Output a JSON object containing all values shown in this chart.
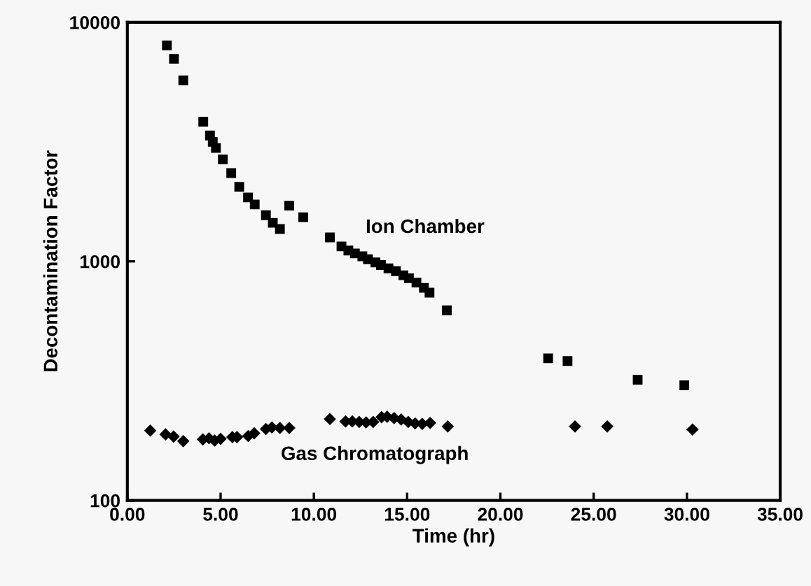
{
  "chart_data": {
    "type": "scatter",
    "xlabel": "Time (hr)",
    "ylabel": "Decontamination Factor",
    "log": "y",
    "grid": false,
    "legend": false,
    "xlim": [
      0,
      35
    ],
    "xticks": [
      {
        "value": 0,
        "label": "0.00"
      },
      {
        "value": 5,
        "label": "5.00"
      },
      {
        "value": 10,
        "label": "10.00"
      },
      {
        "value": 15,
        "label": "15.00"
      },
      {
        "value": 20,
        "label": "20.00"
      },
      {
        "value": 25,
        "label": "25.00"
      },
      {
        "value": 30,
        "label": "30.00"
      },
      {
        "value": 35,
        "label": "35.00"
      }
    ],
    "ylim": [
      100,
      10000
    ],
    "yticks": [
      100,
      1000,
      10000
    ],
    "series": [
      {
        "name": "Ion Chamber",
        "color": "#000000",
        "marker": "square",
        "x": [
          2.12,
          2.5,
          3.0,
          4.07,
          4.43,
          4.58,
          4.75,
          5.12,
          5.57,
          6.0,
          6.47,
          6.83,
          7.43,
          7.8,
          8.18,
          8.68,
          9.43,
          10.86,
          11.48,
          11.85,
          12.2,
          12.6,
          12.9,
          13.3,
          13.6,
          14.0,
          14.4,
          14.8,
          15.1,
          15.5,
          15.9,
          16.2,
          17.13,
          22.56,
          23.6,
          27.36,
          29.86
        ],
        "values": [
          8000,
          7030,
          5710,
          3840,
          3360,
          3160,
          2980,
          2670,
          2340,
          2050,
          1850,
          1730,
          1560,
          1450,
          1365,
          1710,
          1530,
          1260,
          1155,
          1110,
          1080,
          1050,
          1020,
          990,
          965,
          935,
          910,
          875,
          850,
          815,
          775,
          740,
          624,
          393,
          383,
          320,
          303
        ]
      },
      {
        "name": "Gas Chromatograph",
        "color": "#000000",
        "marker": "diamond",
        "x": [
          1.23,
          2.05,
          2.48,
          3.0,
          4.05,
          4.38,
          4.68,
          5.0,
          5.63,
          5.88,
          6.48,
          6.8,
          7.43,
          7.75,
          8.18,
          8.68,
          10.86,
          11.7,
          12.06,
          12.43,
          12.8,
          13.18,
          13.63,
          13.93,
          14.3,
          14.68,
          15.06,
          15.43,
          15.81,
          16.23,
          17.18,
          24.0,
          25.73,
          30.3
        ],
        "values": [
          196,
          189,
          185,
          177,
          180,
          182,
          178,
          181,
          184,
          184,
          186,
          191,
          199,
          202,
          201,
          201,
          219,
          214,
          214,
          213,
          212,
          213,
          223,
          224,
          221,
          218,
          213,
          210,
          209,
          211,
          204,
          204,
          204,
          198
        ]
      }
    ]
  }
}
